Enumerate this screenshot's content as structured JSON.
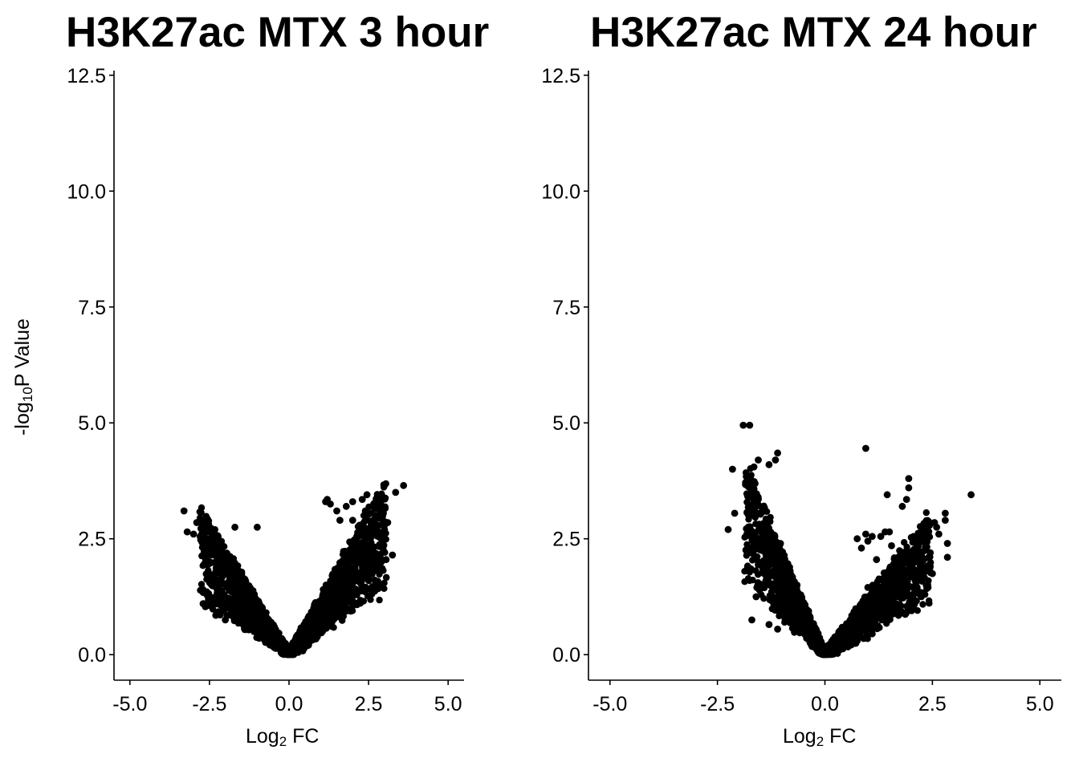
{
  "chart_data": [
    {
      "type": "scatter",
      "title": "H3K27ac MTX 3 hour",
      "xlabel_base": "Log",
      "xlabel_sub": "2",
      "xlabel_rest": " FC",
      "ylabel_prefix": "-log",
      "ylabel_sub": "10",
      "ylabel_rest": "P Value",
      "xlim": [
        -5.5,
        5.5
      ],
      "ylim": [
        -0.55,
        12.6
      ],
      "xticks": [
        "-5.0",
        "-2.5",
        "0.0",
        "2.5",
        "5.0"
      ],
      "xtick_values": [
        -5,
        -2.5,
        0,
        2.5,
        5
      ],
      "yticks": [
        "0.0",
        "2.5",
        "5.0",
        "7.5",
        "10.0",
        "12.5"
      ],
      "ytick_values": [
        0,
        2.5,
        5,
        7.5,
        10,
        12.5
      ],
      "grid": false,
      "marker_color": "#000000",
      "cloud": {
        "left_slope": 1.15,
        "right_slope": 1.25,
        "left_max_x": -3.3,
        "right_max_x": 3.6,
        "n": 2600
      },
      "highlight_points": [
        [
          -3.3,
          3.1
        ],
        [
          -2.9,
          2.85
        ],
        [
          -3.2,
          2.65
        ],
        [
          -3.0,
          2.6
        ],
        [
          -2.5,
          2.4
        ],
        [
          -1.7,
          2.75
        ],
        [
          -1.0,
          2.75
        ],
        [
          -2.7,
          1.1
        ],
        [
          -2.3,
          0.85
        ],
        [
          -2.0,
          0.75
        ],
        [
          1.15,
          3.3
        ],
        [
          1.2,
          3.35
        ],
        [
          1.3,
          3.25
        ],
        [
          1.5,
          3.1
        ],
        [
          1.8,
          3.2
        ],
        [
          2.0,
          3.3
        ],
        [
          2.3,
          3.35
        ],
        [
          2.45,
          3.45
        ],
        [
          2.4,
          3.1
        ],
        [
          2.0,
          2.9
        ],
        [
          3.35,
          3.5
        ],
        [
          3.6,
          3.65
        ],
        [
          3.1,
          2.85
        ],
        [
          2.8,
          2.6
        ],
        [
          3.0,
          2.7
        ],
        [
          2.2,
          2.6
        ],
        [
          3.25,
          2.15
        ],
        [
          3.05,
          2.05
        ],
        [
          2.9,
          2.0
        ],
        [
          2.6,
          2.3
        ],
        [
          1.6,
          2.9
        ],
        [
          2.2,
          2.3
        ]
      ]
    },
    {
      "type": "scatter",
      "title": "H3K27ac MTX 24 hour",
      "xlabel_base": "Log",
      "xlabel_sub": "2",
      "xlabel_rest": " FC",
      "xlim": [
        -5.5,
        5.5
      ],
      "ylim": [
        -0.55,
        12.6
      ],
      "xticks": [
        "-5.0",
        "-2.5",
        "0.0",
        "2.5",
        "5.0"
      ],
      "xtick_values": [
        -5,
        -2.5,
        0,
        2.5,
        5
      ],
      "yticks": [
        "0.0",
        "2.5",
        "5.0",
        "7.5",
        "10.0",
        "12.5"
      ],
      "ytick_values": [
        0,
        2.5,
        5,
        7.5,
        10,
        12.5
      ],
      "grid": false,
      "marker_color": "#000000",
      "cloud": {
        "left_slope": 2.25,
        "right_slope": 1.25,
        "left_max_x": -2.2,
        "right_max_x": 2.9,
        "n": 2600
      },
      "highlight_points": [
        [
          -1.9,
          4.95
        ],
        [
          -1.75,
          4.95
        ],
        [
          -1.65,
          4.05
        ],
        [
          -2.15,
          4.0
        ],
        [
          -1.55,
          4.2
        ],
        [
          -1.1,
          4.35
        ],
        [
          -1.15,
          4.2
        ],
        [
          -1.3,
          4.1
        ],
        [
          -2.25,
          2.7
        ],
        [
          -2.1,
          3.05
        ],
        [
          -1.75,
          1.6
        ],
        [
          -1.6,
          1.25
        ],
        [
          -1.7,
          0.75
        ],
        [
          -1.3,
          0.65
        ],
        [
          -1.1,
          0.55
        ],
        [
          0.95,
          4.45
        ],
        [
          1.95,
          3.8
        ],
        [
          1.95,
          3.6
        ],
        [
          1.8,
          3.2
        ],
        [
          1.45,
          3.45
        ],
        [
          1.9,
          3.35
        ],
        [
          3.4,
          3.45
        ],
        [
          2.8,
          3.05
        ],
        [
          2.8,
          2.9
        ],
        [
          2.55,
          2.85
        ],
        [
          2.6,
          2.75
        ],
        [
          2.65,
          2.6
        ],
        [
          2.85,
          2.4
        ],
        [
          2.85,
          2.1
        ],
        [
          2.2,
          2.55
        ],
        [
          2.35,
          2.35
        ],
        [
          2.45,
          2.2
        ],
        [
          2.05,
          2.5
        ],
        [
          1.9,
          2.2
        ],
        [
          2.45,
          1.9
        ],
        [
          2.5,
          1.75
        ],
        [
          1.75,
          1.7
        ],
        [
          2.0,
          1.7
        ],
        [
          2.1,
          1.6
        ],
        [
          2.4,
          1.45
        ],
        [
          1.55,
          2.35
        ],
        [
          1.4,
          2.65
        ],
        [
          1.5,
          2.65
        ],
        [
          1.3,
          2.55
        ],
        [
          1.2,
          2.05
        ],
        [
          0.85,
          2.3
        ],
        [
          0.75,
          2.5
        ],
        [
          0.95,
          2.6
        ],
        [
          1.0,
          2.45
        ],
        [
          1.1,
          2.55
        ],
        [
          1.0,
          1.45
        ],
        [
          1.3,
          1.05
        ],
        [
          1.45,
          0.95
        ],
        [
          1.75,
          0.9
        ],
        [
          0.85,
          0.55
        ],
        [
          1.1,
          0.45
        ],
        [
          0.75,
          0.3
        ],
        [
          0.5,
          0.2
        ],
        [
          0.9,
          0.35
        ]
      ]
    }
  ]
}
